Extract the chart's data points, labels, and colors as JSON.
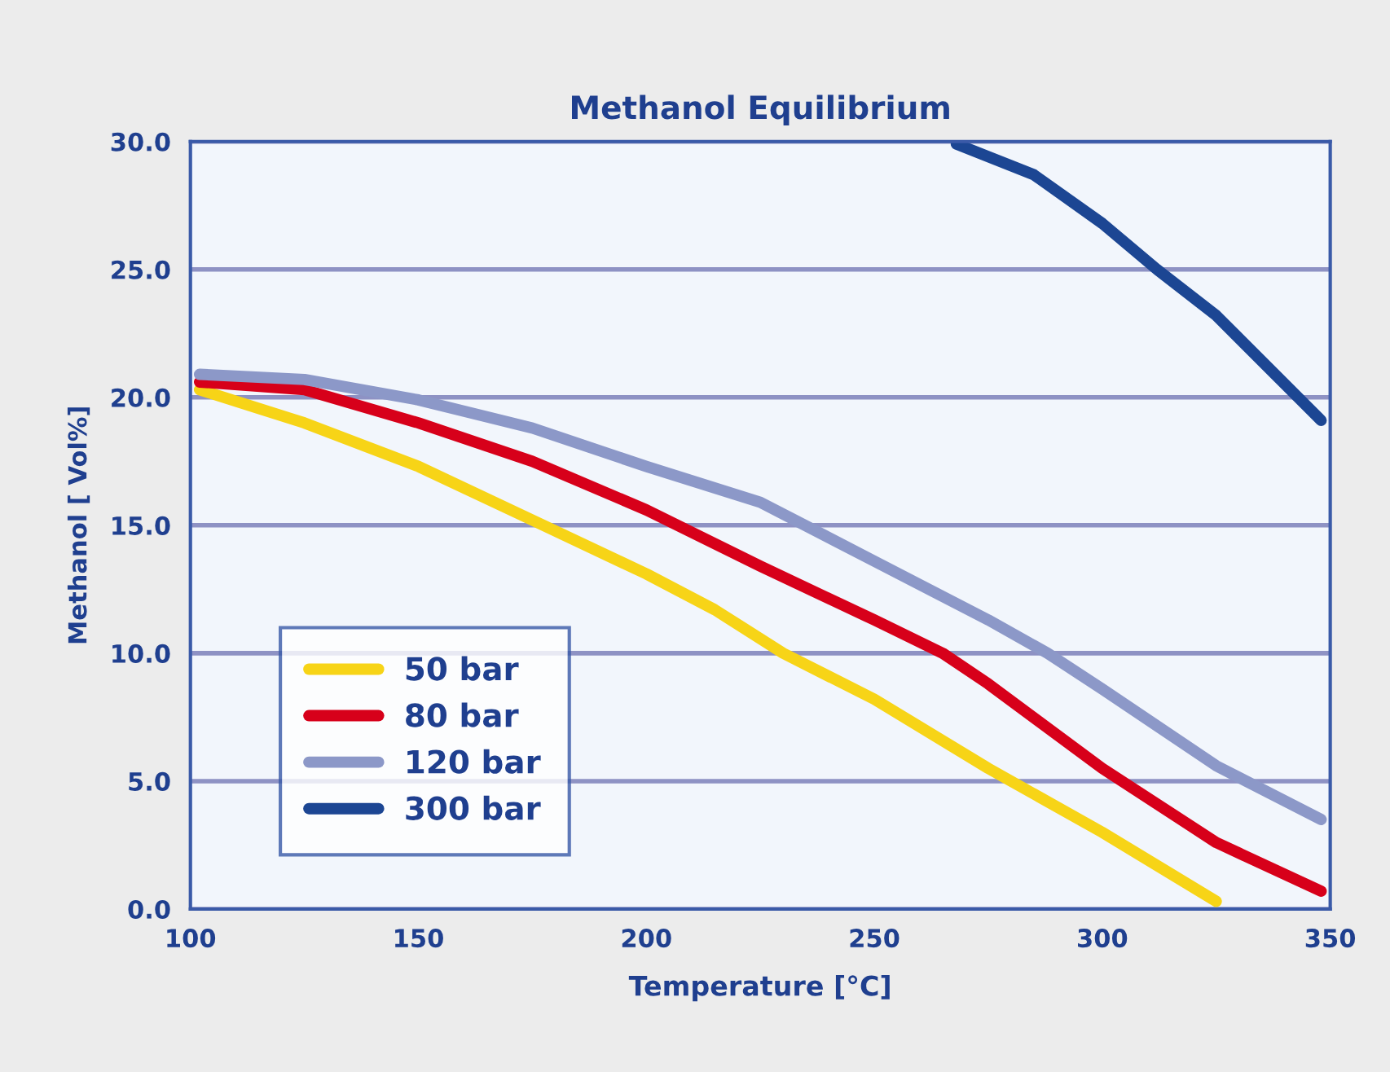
{
  "chart_data": {
    "type": "line",
    "title": "Methanol Equilibrium",
    "xlabel": "Temperature [°C]",
    "ylabel": "Methanol [ Vol%]",
    "xlim": [
      100,
      350
    ],
    "xticks": [
      100,
      150,
      200,
      250,
      300,
      350
    ],
    "ylim": [
      0,
      30
    ],
    "yticks": [
      {
        "value": 0,
        "label": "0.0"
      },
      {
        "value": 5,
        "label": "5.0"
      },
      {
        "value": 10,
        "label": "10.0"
      },
      {
        "value": 15,
        "label": "15.0"
      },
      {
        "value": 20,
        "label": "20.0"
      },
      {
        "value": 25,
        "label": "25.0"
      },
      {
        "value": 30,
        "label": "30.0"
      }
    ],
    "grid": "y",
    "legend": "bottom left",
    "marker": "none",
    "line_style": "solid",
    "series": [
      {
        "name": "50 bar",
        "color": "#f7d417",
        "x": [
          102,
          125,
          150,
          175,
          200,
          215,
          230,
          250,
          275,
          300,
          325
        ],
        "values": [
          20.3,
          19.0,
          17.3,
          15.2,
          13.1,
          11.7,
          10.0,
          8.2,
          5.5,
          3.0,
          0.3
        ]
      },
      {
        "name": "80 bar",
        "color": "#d7001a",
        "x": [
          102,
          125,
          150,
          175,
          200,
          225,
          250,
          265,
          275,
          300,
          325,
          348
        ],
        "values": [
          20.6,
          20.3,
          19.0,
          17.5,
          15.6,
          13.4,
          11.3,
          10.0,
          8.8,
          5.5,
          2.6,
          0.7
        ]
      },
      {
        "name": "120 bar",
        "color": "#8c98c8",
        "x": [
          102,
          125,
          150,
          175,
          200,
          225,
          250,
          275,
          288,
          300,
          325,
          348
        ],
        "values": [
          20.9,
          20.7,
          19.9,
          18.8,
          17.3,
          15.9,
          13.6,
          11.3,
          10.0,
          8.6,
          5.6,
          3.5
        ]
      },
      {
        "name": "300 bar",
        "color": "#1c4693",
        "x": [
          268,
          285,
          300,
          312,
          325,
          348
        ],
        "values": [
          29.9,
          28.7,
          26.8,
          25.0,
          23.2,
          19.1
        ]
      }
    ]
  }
}
